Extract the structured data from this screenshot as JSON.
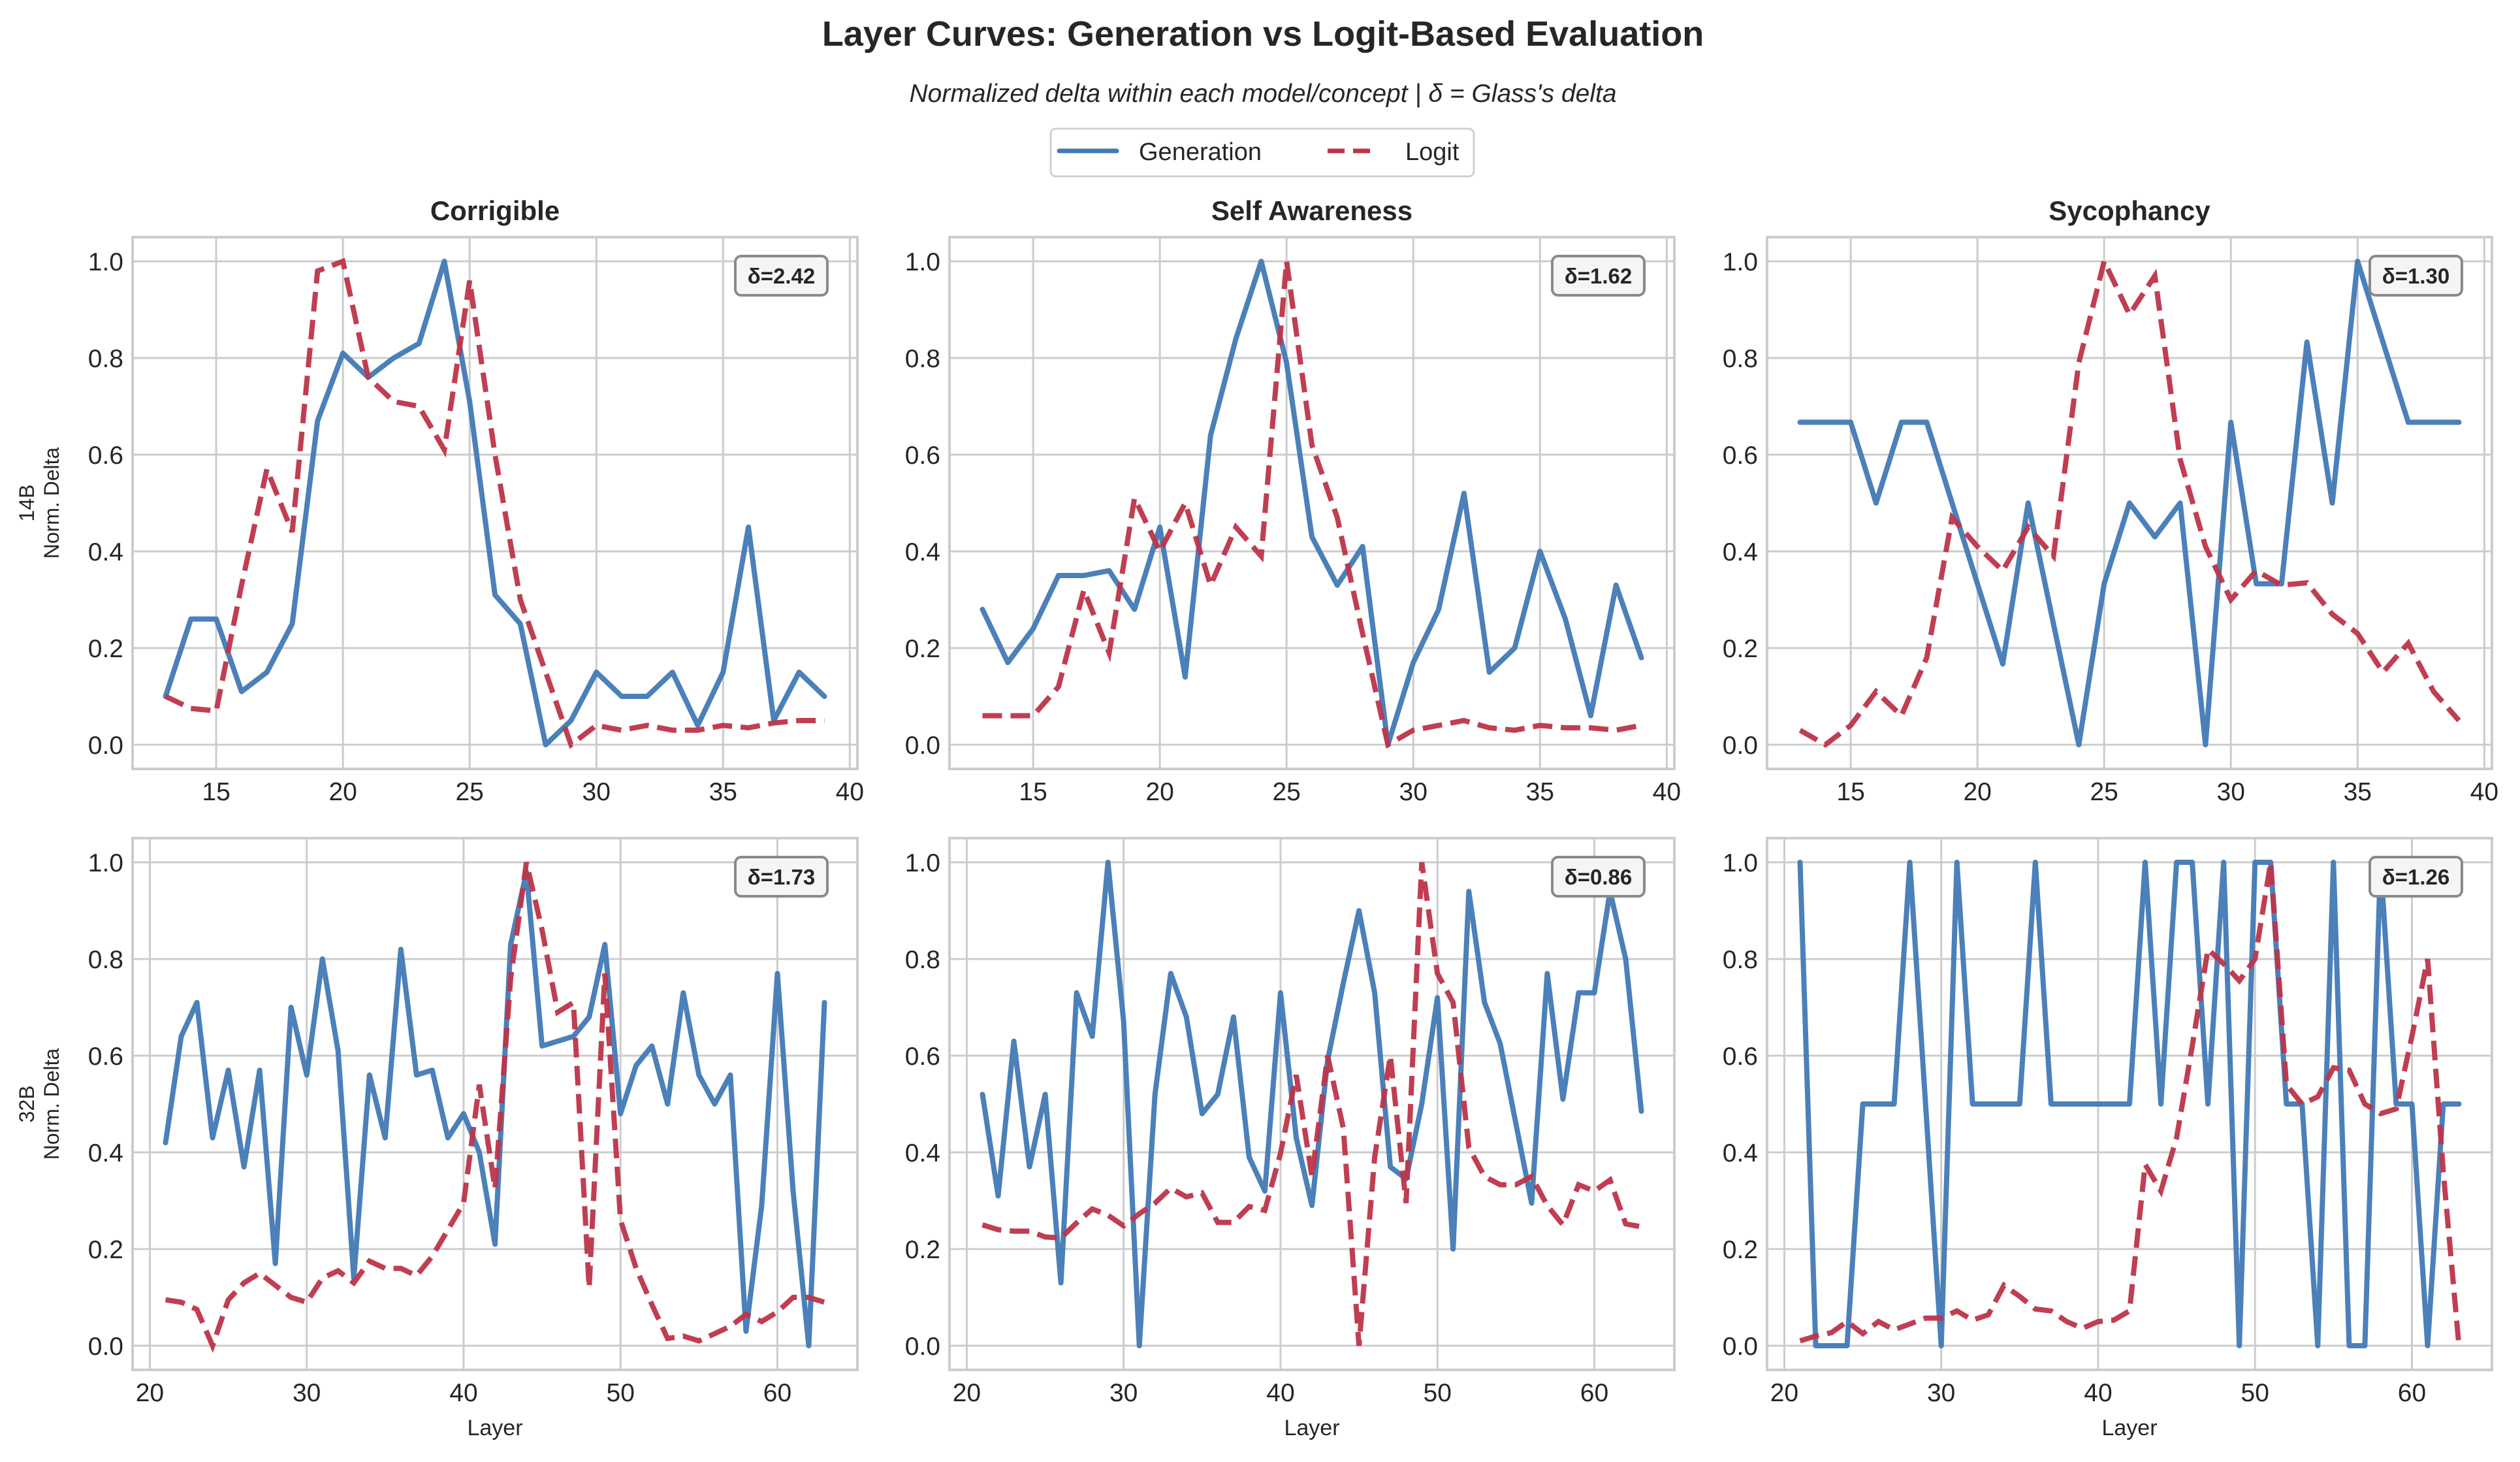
{
  "colors": {
    "generation": "#4179b5",
    "logit": "#bd3449",
    "grid": "#cccccc",
    "frame": "#cccccc",
    "text": "#262626",
    "delta_box_fill": "#f5f5f5",
    "delta_box_edge": "#8a8a8a"
  },
  "chart_data": {
    "type": "line",
    "title": "Layer Curves: Generation vs Logit-Based Evaluation",
    "subtitle": "Normalized delta within each model/concept | δ = Glass's delta",
    "legend": {
      "placement": "top-center",
      "entries": [
        {
          "label": "Generation",
          "style": "solid",
          "series": "generation"
        },
        {
          "label": "Logit",
          "style": "dashed",
          "series": "logit"
        }
      ]
    },
    "columns": [
      "Corrigible",
      "Self Awareness",
      "Sycophancy"
    ],
    "rows": [
      {
        "model": "14B",
        "ylabel_line1": "14B",
        "ylabel_line2": "Norm. Delta"
      },
      {
        "model": "32B",
        "ylabel_line1": "32B",
        "ylabel_line2": "Norm. Delta"
      }
    ],
    "xlabel": "Layer",
    "ylim": [
      -0.05,
      1.05
    ],
    "yticks": [
      0.0,
      0.2,
      0.4,
      0.6,
      0.8,
      1.0
    ],
    "ytick_labels": [
      "0.0",
      "0.2",
      "0.4",
      "0.6",
      "0.8",
      "1.0"
    ],
    "grid": true,
    "panels": [
      {
        "row": 0,
        "col": 0,
        "concept": "Corrigible",
        "model": "14B",
        "delta_label": "δ=2.42",
        "xlim": [
          11.7,
          40.3
        ],
        "xticks": [
          15,
          20,
          25,
          30,
          35,
          40
        ],
        "xtick_labels": [
          "15",
          "20",
          "25",
          "30",
          "35",
          "40"
        ],
        "show_xlabel": false,
        "x": [
          13,
          14,
          15,
          16,
          17,
          18,
          19,
          20,
          21,
          22,
          23,
          24,
          25,
          26,
          27,
          28,
          29,
          30,
          31,
          32,
          33,
          34,
          35,
          36,
          37,
          38,
          39
        ],
        "series": [
          {
            "name": "Generation",
            "key": "generation",
            "values": [
              0.1,
              0.26,
              0.26,
              0.11,
              0.15,
              0.25,
              0.67,
              0.81,
              0.76,
              0.8,
              0.83,
              1.0,
              0.71,
              0.31,
              0.25,
              0.0,
              0.05,
              0.15,
              0.1,
              0.1,
              0.15,
              0.04,
              0.15,
              0.45,
              0.05,
              0.15,
              0.1
            ]
          },
          {
            "name": "Logit",
            "key": "logit",
            "values": [
              0.1,
              0.075,
              0.07,
              0.33,
              0.57,
              0.44,
              0.98,
              1.0,
              0.76,
              0.71,
              0.7,
              0.61,
              0.96,
              0.6,
              0.3,
              0.15,
              0.0,
              0.04,
              0.03,
              0.04,
              0.03,
              0.03,
              0.04,
              0.035,
              0.045,
              0.05,
              0.05
            ]
          }
        ]
      },
      {
        "row": 0,
        "col": 1,
        "concept": "Self Awareness",
        "model": "14B",
        "delta_label": "δ=1.62",
        "xlim": [
          11.7,
          40.3
        ],
        "xticks": [
          15,
          20,
          25,
          30,
          35,
          40
        ],
        "xtick_labels": [
          "15",
          "20",
          "25",
          "30",
          "35",
          "40"
        ],
        "show_xlabel": false,
        "x": [
          13,
          14,
          15,
          16,
          17,
          18,
          19,
          20,
          21,
          22,
          23,
          24,
          25,
          26,
          27,
          28,
          29,
          30,
          31,
          32,
          33,
          34,
          35,
          36,
          37,
          38,
          39
        ],
        "series": [
          {
            "name": "Generation",
            "key": "generation",
            "values": [
              0.28,
              0.17,
              0.24,
              0.35,
              0.35,
              0.36,
              0.28,
              0.45,
              0.14,
              0.64,
              0.84,
              1.0,
              0.79,
              0.43,
              0.33,
              0.41,
              0.0,
              0.17,
              0.28,
              0.52,
              0.15,
              0.2,
              0.4,
              0.26,
              0.06,
              0.33,
              0.18
            ]
          },
          {
            "name": "Logit",
            "key": "logit",
            "values": [
              0.06,
              0.06,
              0.06,
              0.12,
              0.32,
              0.19,
              0.51,
              0.4,
              0.5,
              0.33,
              0.45,
              0.39,
              1.0,
              0.62,
              0.47,
              0.23,
              0.0,
              0.03,
              0.04,
              0.05,
              0.035,
              0.03,
              0.04,
              0.035,
              0.035,
              0.03,
              0.04
            ]
          }
        ]
      },
      {
        "row": 0,
        "col": 2,
        "concept": "Sycophancy",
        "model": "14B",
        "delta_label": "δ=1.30",
        "xlim": [
          11.7,
          40.3
        ],
        "xticks": [
          15,
          20,
          25,
          30,
          35,
          40
        ],
        "xtick_labels": [
          "15",
          "20",
          "25",
          "30",
          "35",
          "40"
        ],
        "show_xlabel": false,
        "x": [
          13,
          14,
          15,
          16,
          17,
          18,
          19,
          20,
          21,
          22,
          23,
          24,
          25,
          26,
          27,
          28,
          29,
          30,
          31,
          32,
          33,
          34,
          35,
          36,
          37,
          38,
          39
        ],
        "series": [
          {
            "name": "Generation",
            "key": "generation",
            "values": [
              0.667,
              0.667,
              0.667,
              0.5,
              0.667,
              0.667,
              0.5,
              0.333,
              0.167,
              0.5,
              0.25,
              0.0,
              0.333,
              0.5,
              0.43,
              0.5,
              0.0,
              0.667,
              0.333,
              0.333,
              0.833,
              0.5,
              1.0,
              0.833,
              0.667,
              0.667,
              0.667
            ]
          },
          {
            "name": "Logit",
            "key": "logit",
            "values": [
              0.03,
              0.0,
              0.04,
              0.11,
              0.06,
              0.18,
              0.47,
              0.41,
              0.36,
              0.45,
              0.39,
              0.79,
              1.0,
              0.89,
              0.97,
              0.59,
              0.41,
              0.3,
              0.36,
              0.33,
              0.335,
              0.27,
              0.23,
              0.15,
              0.21,
              0.11,
              0.05
            ]
          }
        ]
      },
      {
        "row": 1,
        "col": 0,
        "concept": "Corrigible",
        "model": "32B",
        "delta_label": "δ=1.73",
        "xlim": [
          18.9,
          65.1
        ],
        "xticks": [
          20,
          30,
          40,
          50,
          60
        ],
        "xtick_labels": [
          "20",
          "30",
          "40",
          "50",
          "60"
        ],
        "show_xlabel": true,
        "x": [
          21,
          22,
          23,
          24,
          25,
          26,
          27,
          28,
          29,
          30,
          31,
          32,
          33,
          34,
          35,
          36,
          37,
          38,
          39,
          40,
          41,
          42,
          43,
          44,
          45,
          46,
          47,
          48,
          49,
          50,
          51,
          52,
          53,
          54,
          55,
          56,
          57,
          58,
          59,
          60,
          61,
          62,
          63
        ],
        "series": [
          {
            "name": "Generation",
            "key": "generation",
            "values": [
              0.42,
              0.64,
              0.71,
              0.43,
              0.57,
              0.37,
              0.57,
              0.17,
              0.7,
              0.56,
              0.8,
              0.61,
              0.14,
              0.56,
              0.43,
              0.82,
              0.56,
              0.57,
              0.43,
              0.48,
              0.4,
              0.21,
              0.83,
              0.98,
              0.62,
              0.63,
              0.64,
              0.68,
              0.83,
              0.48,
              0.58,
              0.62,
              0.5,
              0.73,
              0.56,
              0.5,
              0.56,
              0.03,
              0.29,
              0.77,
              0.32,
              0.0,
              0.71
            ]
          },
          {
            "name": "Logit",
            "key": "logit",
            "values": [
              0.095,
              0.09,
              0.075,
              0.0,
              0.095,
              0.13,
              0.15,
              0.125,
              0.1,
              0.09,
              0.14,
              0.155,
              0.13,
              0.175,
              0.16,
              0.16,
              0.145,
              0.185,
              0.24,
              0.295,
              0.54,
              0.325,
              0.76,
              1.0,
              0.86,
              0.69,
              0.71,
              0.12,
              0.77,
              0.26,
              0.16,
              0.085,
              0.015,
              0.02,
              0.01,
              0.025,
              0.04,
              0.065,
              0.05,
              0.07,
              0.1,
              0.1,
              0.09
            ]
          }
        ]
      },
      {
        "row": 1,
        "col": 1,
        "concept": "Self Awareness",
        "model": "32B",
        "delta_label": "δ=0.86",
        "xlim": [
          18.9,
          65.1
        ],
        "xticks": [
          20,
          30,
          40,
          50,
          60
        ],
        "xtick_labels": [
          "20",
          "30",
          "40",
          "50",
          "60"
        ],
        "show_xlabel": true,
        "x": [
          21,
          22,
          23,
          24,
          25,
          26,
          27,
          28,
          29,
          30,
          31,
          32,
          33,
          34,
          35,
          36,
          37,
          38,
          39,
          40,
          41,
          42,
          43,
          44,
          45,
          46,
          47,
          48,
          49,
          50,
          51,
          52,
          53,
          54,
          55,
          56,
          57,
          58,
          59,
          60,
          61,
          62,
          63
        ],
        "series": [
          {
            "name": "Generation",
            "key": "generation",
            "values": [
              0.52,
              0.31,
              0.63,
              0.37,
              0.52,
              0.13,
              0.73,
              0.64,
              1.0,
              0.67,
              0.0,
              0.52,
              0.77,
              0.68,
              0.48,
              0.52,
              0.68,
              0.39,
              0.32,
              0.73,
              0.43,
              0.29,
              0.59,
              0.75,
              0.9,
              0.73,
              0.37,
              0.345,
              0.5,
              0.72,
              0.2,
              0.94,
              0.71,
              0.625,
              0.46,
              0.295,
              0.77,
              0.51,
              0.73,
              0.73,
              0.94,
              0.8,
              0.485
            ]
          },
          {
            "name": "Logit",
            "key": "logit",
            "values": [
              0.25,
              0.24,
              0.237,
              0.237,
              0.225,
              0.223,
              0.254,
              0.283,
              0.27,
              0.248,
              0.273,
              0.295,
              0.326,
              0.308,
              0.316,
              0.255,
              0.255,
              0.288,
              0.28,
              0.398,
              0.56,
              0.35,
              0.6,
              0.45,
              0.0,
              0.39,
              0.6,
              0.295,
              1.0,
              0.77,
              0.71,
              0.41,
              0.35,
              0.333,
              0.333,
              0.35,
              0.29,
              0.25,
              0.333,
              0.32,
              0.343,
              0.252,
              0.246
            ]
          }
        ]
      },
      {
        "row": 1,
        "col": 2,
        "concept": "Sycophancy",
        "model": "32B",
        "delta_label": "δ=1.26",
        "xlim": [
          18.9,
          65.1
        ],
        "xticks": [
          20,
          30,
          40,
          50,
          60
        ],
        "xtick_labels": [
          "20",
          "30",
          "40",
          "50",
          "60"
        ],
        "show_xlabel": true,
        "x": [
          21,
          22,
          23,
          24,
          25,
          26,
          27,
          28,
          29,
          30,
          31,
          32,
          33,
          34,
          35,
          36,
          37,
          38,
          39,
          40,
          41,
          42,
          43,
          44,
          45,
          46,
          47,
          48,
          49,
          50,
          51,
          52,
          53,
          54,
          55,
          56,
          57,
          58,
          59,
          60,
          61,
          62,
          63
        ],
        "series": [
          {
            "name": "Generation",
            "key": "generation",
            "values": [
              1.0,
              0.0,
              0.0,
              0.0,
              0.5,
              0.5,
              0.5,
              1.0,
              0.5,
              0.0,
              1.0,
              0.5,
              0.5,
              0.5,
              0.5,
              1.0,
              0.5,
              0.5,
              0.5,
              0.5,
              0.5,
              0.5,
              1.0,
              0.5,
              1.0,
              1.0,
              0.5,
              1.0,
              0.0,
              1.0,
              1.0,
              0.5,
              0.5,
              0.0,
              1.0,
              0.0,
              0.0,
              1.0,
              0.5,
              0.5,
              0.0,
              0.5,
              0.5
            ]
          },
          {
            "name": "Logit",
            "key": "logit",
            "values": [
              0.01,
              0.02,
              0.027,
              0.05,
              0.025,
              0.05,
              0.033,
              0.045,
              0.057,
              0.057,
              0.072,
              0.053,
              0.064,
              0.125,
              0.102,
              0.076,
              0.072,
              0.05,
              0.036,
              0.05,
              0.053,
              0.072,
              0.375,
              0.32,
              0.43,
              0.62,
              0.82,
              0.79,
              0.755,
              0.8,
              1.0,
              0.54,
              0.5,
              0.515,
              0.575,
              0.57,
              0.5,
              0.48,
              0.49,
              0.64,
              0.8,
              0.36,
              0.0
            ]
          }
        ]
      }
    ]
  }
}
